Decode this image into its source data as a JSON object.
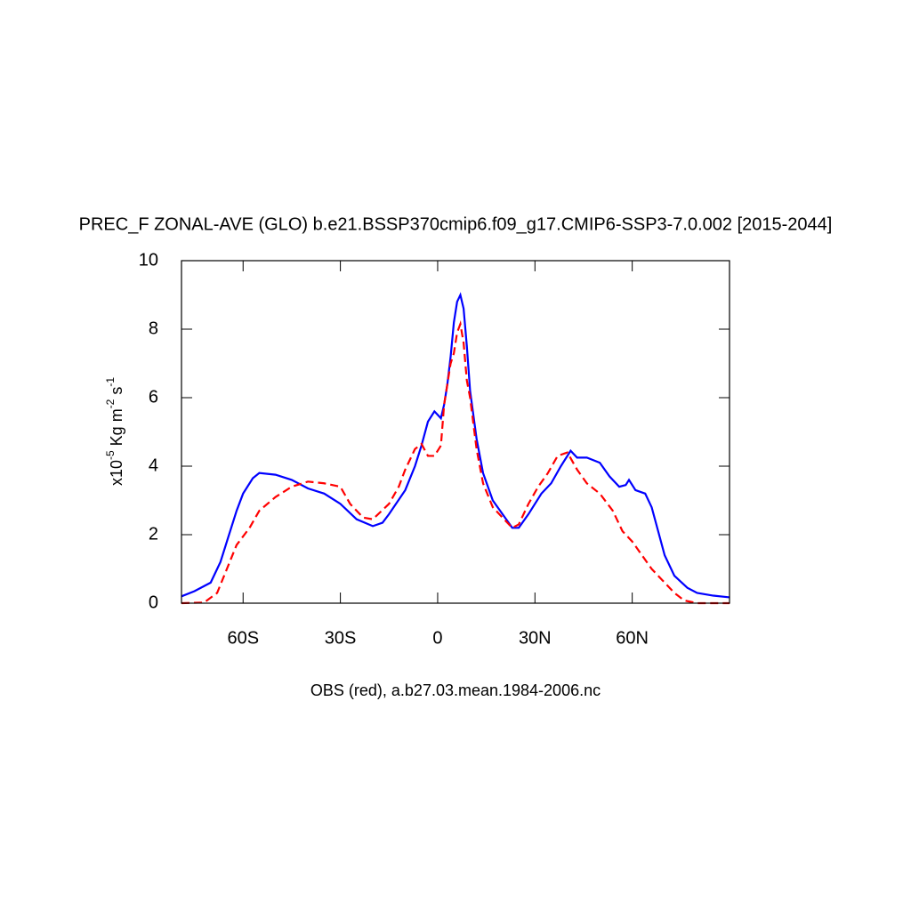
{
  "chart_data": {
    "type": "line",
    "title": "PREC_F ZONAL-AVE (GLO) b.e21.BSSP370cmip6.f09_g17.CMIP6-SSP3-7.0.002 [2015-2044]",
    "xlabel": "OBS (red), a.b27.03.mean.1984-2006.nc",
    "ylabel": [
      "x10",
      "-5",
      " Kg m",
      "-2",
      " s",
      "-1"
    ],
    "xlim": [
      -79,
      90
    ],
    "xticks": [
      {
        "value": -60,
        "label": "60S"
      },
      {
        "value": -30,
        "label": "30S"
      },
      0,
      {
        "value": 30,
        "label": "30N"
      },
      {
        "value": 60,
        "label": "60N"
      }
    ],
    "ylim": [
      0,
      10
    ],
    "yticks": [
      0,
      2,
      4,
      6,
      8,
      10
    ],
    "series": [
      {
        "color": "#0000ff",
        "dash": false,
        "x": [
          -79,
          -75,
          -70,
          -67,
          -65,
          -62,
          -60,
          -57,
          -55,
          -50,
          -45,
          -40,
          -35,
          -30,
          -25,
          -20,
          -17,
          -15,
          -10,
          -7,
          -5,
          -3,
          -1,
          1,
          2,
          3,
          4,
          5,
          6,
          7,
          8,
          9,
          10,
          12,
          14,
          17,
          20,
          23,
          25,
          28,
          32,
          35,
          38,
          41,
          43,
          46,
          50,
          53,
          56,
          58,
          59,
          61,
          64,
          66,
          68,
          70,
          73,
          77,
          80,
          85,
          90
        ],
        "values": [
          0.2,
          0.35,
          0.6,
          1.2,
          1.8,
          2.7,
          3.2,
          3.65,
          3.8,
          3.75,
          3.6,
          3.35,
          3.2,
          2.9,
          2.45,
          2.25,
          2.35,
          2.6,
          3.3,
          4.0,
          4.6,
          5.3,
          5.6,
          5.4,
          5.8,
          6.4,
          7.2,
          8.2,
          8.8,
          9.0,
          8.6,
          7.5,
          6.2,
          4.8,
          3.8,
          3.0,
          2.6,
          2.2,
          2.2,
          2.6,
          3.2,
          3.5,
          4.0,
          4.45,
          4.25,
          4.25,
          4.1,
          3.7,
          3.4,
          3.45,
          3.6,
          3.3,
          3.2,
          2.8,
          2.1,
          1.4,
          0.8,
          0.45,
          0.3,
          0.22,
          0.17
        ]
      },
      {
        "color": "#ff0000",
        "dash": true,
        "x": [
          -79,
          -72,
          -68,
          -65,
          -62,
          -58,
          -55,
          -50,
          -45,
          -40,
          -35,
          -30,
          -27,
          -23,
          -20,
          -15,
          -12,
          -10,
          -7,
          -5,
          -3,
          -1,
          1,
          2,
          4,
          5,
          6,
          7,
          8,
          9,
          10,
          12,
          14,
          17,
          20,
          23,
          25,
          28,
          31,
          34,
          37,
          40,
          43,
          46,
          50,
          54,
          57,
          60,
          63,
          66,
          70,
          73,
          76,
          80,
          90
        ],
        "values": [
          0,
          0.02,
          0.3,
          1.0,
          1.7,
          2.2,
          2.7,
          3.1,
          3.4,
          3.55,
          3.5,
          3.4,
          2.9,
          2.5,
          2.45,
          2.9,
          3.4,
          3.9,
          4.5,
          4.65,
          4.3,
          4.3,
          4.6,
          5.8,
          7.0,
          7.3,
          7.9,
          8.15,
          7.6,
          6.5,
          6.0,
          4.5,
          3.5,
          2.8,
          2.5,
          2.2,
          2.3,
          2.9,
          3.4,
          3.8,
          4.3,
          4.4,
          3.9,
          3.5,
          3.2,
          2.7,
          2.1,
          1.8,
          1.4,
          1.0,
          0.6,
          0.3,
          0.08,
          0,
          0
        ]
      }
    ]
  }
}
